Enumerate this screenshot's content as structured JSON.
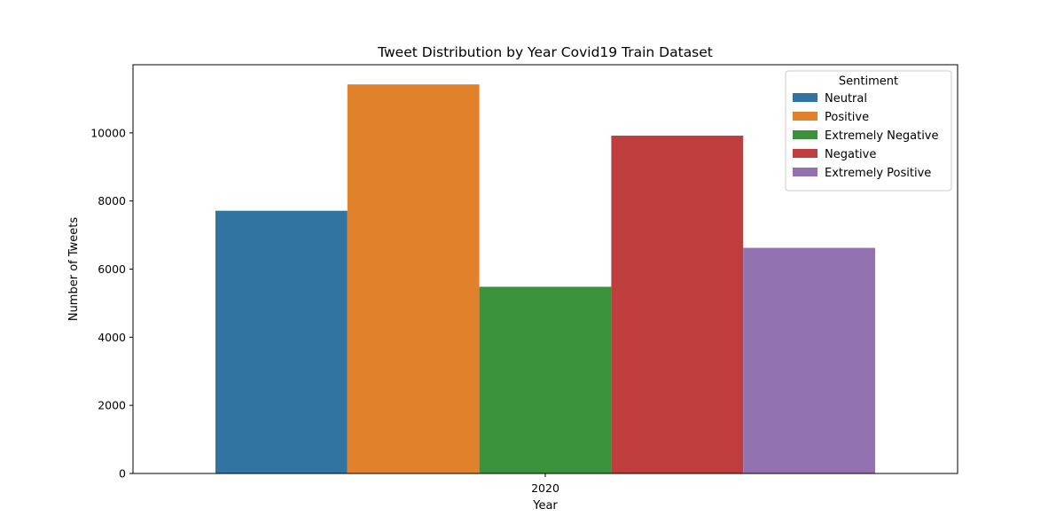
{
  "chart_data": {
    "type": "bar",
    "title": "Tweet Distribution by Year Covid19 Train Dataset",
    "xlabel": "Year",
    "ylabel": "Number of Tweets",
    "categories": [
      "2020"
    ],
    "ylim": [
      0,
      12000
    ],
    "yticks": [
      0,
      2000,
      4000,
      6000,
      8000,
      10000
    ],
    "grid": false,
    "legend": {
      "title": "Sentiment",
      "placement": "top-right"
    },
    "series": [
      {
        "name": "Neutral",
        "values": [
          7713
        ],
        "color": "#3274a1"
      },
      {
        "name": "Positive",
        "values": [
          11422
        ],
        "color": "#e1812c"
      },
      {
        "name": "Extremely Negative",
        "values": [
          5481
        ],
        "color": "#3a923a"
      },
      {
        "name": "Negative",
        "values": [
          9917
        ],
        "color": "#c03d3e"
      },
      {
        "name": "Extremely Positive",
        "values": [
          6624
        ],
        "color": "#9372b2"
      }
    ]
  }
}
